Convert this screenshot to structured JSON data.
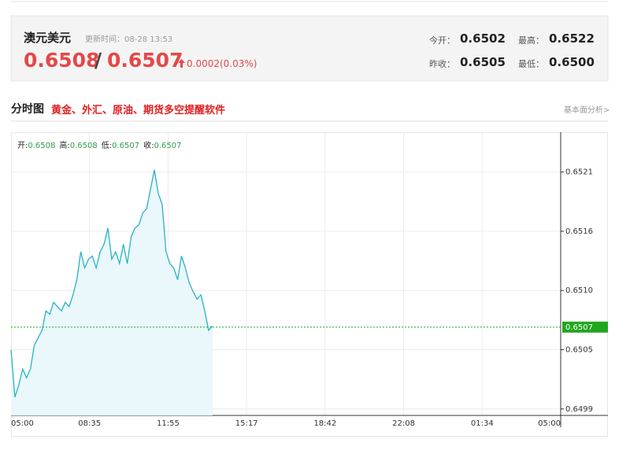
{
  "header": {
    "name": "澳元美元",
    "update_time": "更新时间：08-28 13:53",
    "bid": "0.6508",
    "separator": "/",
    "ask": "0.6507",
    "change": "0.0002(0.03%)",
    "stats": [
      {
        "label": "今开：",
        "value": "0.6502"
      },
      {
        "label": "最高：",
        "value": "0.6522"
      },
      {
        "label": "昨收：",
        "value": "0.6505"
      },
      {
        "label": "最低：",
        "value": "0.6500"
      }
    ]
  },
  "section": {
    "title": "分时图",
    "promo": "黄金、外汇、原油、期货多空提醒软件",
    "link": "基本面分析>"
  },
  "chart_data": {
    "type": "line",
    "info": [
      {
        "label": "开:",
        "value": "0.6508"
      },
      {
        "label": "高:",
        "value": "0.6508"
      },
      {
        "label": "低:",
        "value": "0.6507"
      },
      {
        "label": "收:",
        "value": "0.6507"
      }
    ],
    "xtick_labels": [
      "05:00",
      "08:35",
      "11:55",
      "15:17",
      "18:42",
      "22:08",
      "01:34",
      "05:00"
    ],
    "ylim": [
      0.64988,
      0.65251
    ],
    "yticks": [
      {
        "value": 0.65214,
        "label": "0.6521"
      },
      {
        "value": 0.65159,
        "label": "0.6516"
      },
      {
        "value": 0.65104,
        "label": "0.6510"
      },
      {
        "value": 0.65049,
        "label": "0.6505"
      },
      {
        "value": 0.64994,
        "label": "0.6499"
      }
    ],
    "grid": true,
    "last": 0.6507,
    "last_color": "#1fa81f",
    "series": [
      {
        "color": "#27b3c6",
        "values": [
          0.65049,
          0.65005,
          0.65016,
          0.65031,
          0.65023,
          0.65031,
          0.65053,
          0.6506,
          0.65067,
          0.65085,
          0.65082,
          0.65093,
          0.65089,
          0.65085,
          0.65093,
          0.65089,
          0.651,
          0.65114,
          0.6514,
          0.65125,
          0.65133,
          0.65136,
          0.65125,
          0.6514,
          0.65147,
          0.65162,
          0.65133,
          0.6514,
          0.65129,
          0.65147,
          0.65129,
          0.65154,
          0.65162,
          0.65165,
          0.65176,
          0.6518,
          0.65198,
          0.65216,
          0.65194,
          0.65184,
          0.6514,
          0.65129,
          0.65125,
          0.65114,
          0.65136,
          0.65125,
          0.65111,
          0.65103,
          0.65096,
          0.651,
          0.65085,
          0.65067,
          0.65071
        ]
      }
    ]
  }
}
